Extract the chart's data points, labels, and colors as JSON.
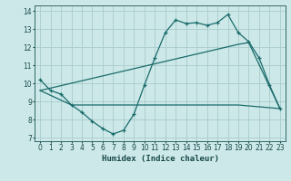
{
  "xlabel": "Humidex (Indice chaleur)",
  "bg_color": "#cce8e8",
  "grid_color": "#aacccc",
  "line_color": "#1a6b6b",
  "xlim": [
    -0.5,
    23.5
  ],
  "ylim": [
    6.8,
    14.3
  ],
  "yticks": [
    7,
    8,
    9,
    10,
    11,
    12,
    13,
    14
  ],
  "xticks": [
    0,
    1,
    2,
    3,
    4,
    5,
    6,
    7,
    8,
    9,
    10,
    11,
    12,
    13,
    14,
    15,
    16,
    17,
    18,
    19,
    20,
    21,
    22,
    23
  ],
  "line1_x": [
    0,
    1,
    2,
    3,
    4,
    5,
    6,
    7,
    8,
    9,
    10,
    11,
    12,
    13,
    14,
    15,
    16,
    17,
    18,
    19,
    20,
    21,
    22,
    23
  ],
  "line1_y": [
    10.2,
    9.6,
    9.4,
    8.8,
    8.4,
    7.9,
    7.5,
    7.2,
    7.4,
    8.3,
    9.9,
    11.4,
    12.8,
    13.5,
    13.3,
    13.35,
    13.2,
    13.35,
    13.8,
    12.8,
    12.3,
    11.4,
    9.9,
    8.6
  ],
  "line2_x": [
    0,
    19,
    20,
    23
  ],
  "line2_y": [
    9.6,
    12.15,
    12.25,
    8.6
  ],
  "line3_x": [
    0,
    3,
    10,
    19,
    23
  ],
  "line3_y": [
    9.6,
    8.8,
    8.8,
    8.8,
    8.6
  ]
}
